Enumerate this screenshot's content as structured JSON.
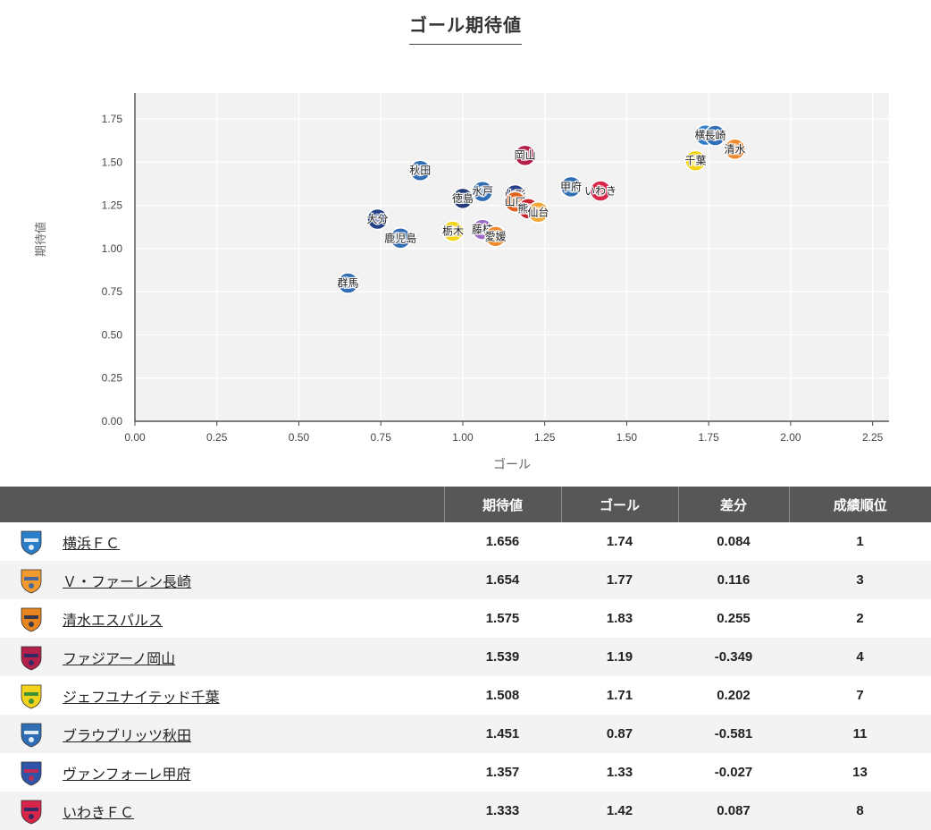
{
  "chart_data": {
    "type": "scatter",
    "title": "ゴール期待値",
    "xlabel": "ゴール",
    "ylabel": "期待値",
    "xlim": [
      0,
      2.3
    ],
    "ylim": [
      0,
      1.9
    ],
    "xticks": [
      "0.00",
      "0.25",
      "0.50",
      "0.75",
      "1.00",
      "1.25",
      "1.50",
      "1.75",
      "2.00",
      "2.25"
    ],
    "yticks": [
      "0.00",
      "0.25",
      "0.50",
      "0.75",
      "1.00",
      "1.25",
      "1.50",
      "1.75"
    ],
    "grid": true,
    "points": [
      {
        "label": "横浜",
        "x": 1.74,
        "y": 1.656,
        "color": "#2f7fc8"
      },
      {
        "label": "長崎",
        "x": 1.77,
        "y": 1.654,
        "color": "#2f6db5"
      },
      {
        "label": "清水",
        "x": 1.83,
        "y": 1.575,
        "color": "#f08a2e"
      },
      {
        "label": "岡山",
        "x": 1.19,
        "y": 1.539,
        "color": "#b3204a"
      },
      {
        "label": "千葉",
        "x": 1.71,
        "y": 1.508,
        "color": "#f4d51c"
      },
      {
        "label": "秋田",
        "x": 0.87,
        "y": 1.451,
        "color": "#2f6db5"
      },
      {
        "label": "甲府",
        "x": 1.33,
        "y": 1.357,
        "color": "#2f6db5"
      },
      {
        "label": "いわき",
        "x": 1.42,
        "y": 1.333,
        "color": "#d8254a"
      },
      {
        "label": "水戸",
        "x": 1.06,
        "y": 1.33,
        "color": "#2f6db5"
      },
      {
        "label": "徳島",
        "x": 1.0,
        "y": 1.29,
        "color": "#233a7a"
      },
      {
        "label": "山形",
        "x": 1.16,
        "y": 1.31,
        "color": "#273f88"
      },
      {
        "label": "山口",
        "x": 1.16,
        "y": 1.27,
        "color": "#e2611f"
      },
      {
        "label": "熊本",
        "x": 1.2,
        "y": 1.23,
        "color": "#c8202c"
      },
      {
        "label": "仙台",
        "x": 1.23,
        "y": 1.21,
        "color": "#f2a735"
      },
      {
        "label": "大分",
        "x": 0.74,
        "y": 1.17,
        "color": "#243f86"
      },
      {
        "label": "栃木",
        "x": 0.97,
        "y": 1.1,
        "color": "#f4d51c"
      },
      {
        "label": "藤枝",
        "x": 1.06,
        "y": 1.11,
        "color": "#9b6bc6"
      },
      {
        "label": "愛媛",
        "x": 1.1,
        "y": 1.07,
        "color": "#f08a2e"
      },
      {
        "label": "鹿児島",
        "x": 0.81,
        "y": 1.06,
        "color": "#2f6db5"
      },
      {
        "label": "群馬",
        "x": 0.65,
        "y": 0.8,
        "color": "#2f6db5"
      }
    ]
  },
  "table": {
    "headers": [
      "期待値",
      "ゴール",
      "差分",
      "成績順位"
    ],
    "rows": [
      {
        "name": "横浜ＦＣ",
        "xg": "1.656",
        "goals": "1.74",
        "diff": "0.084",
        "rank": "1",
        "crest_color": "#2a7dc7",
        "crest_accent": "#ffffff"
      },
      {
        "name": "Ｖ・ファーレン長崎",
        "xg": "1.654",
        "goals": "1.77",
        "diff": "0.116",
        "rank": "3",
        "crest_color": "#f29a2e",
        "crest_accent": "#2b5fae"
      },
      {
        "name": "清水エスパルス",
        "xg": "1.575",
        "goals": "1.83",
        "diff": "0.255",
        "rank": "2",
        "crest_color": "#e9851f",
        "crest_accent": "#1b2a55"
      },
      {
        "name": "ファジアーノ岡山",
        "xg": "1.539",
        "goals": "1.19",
        "diff": "-0.349",
        "rank": "4",
        "crest_color": "#b3204a",
        "crest_accent": "#1f2f6a"
      },
      {
        "name": "ジェフユナイテッド千葉",
        "xg": "1.508",
        "goals": "1.71",
        "diff": "0.202",
        "rank": "7",
        "crest_color": "#f2d21a",
        "crest_accent": "#1e8a3c"
      },
      {
        "name": "ブラウブリッツ秋田",
        "xg": "1.451",
        "goals": "0.87",
        "diff": "-0.581",
        "rank": "11",
        "crest_color": "#2f6db5",
        "crest_accent": "#ffffff"
      },
      {
        "name": "ヴァンフォーレ甲府",
        "xg": "1.357",
        "goals": "1.33",
        "diff": "-0.027",
        "rank": "13",
        "crest_color": "#2f55a8",
        "crest_accent": "#d8254a"
      },
      {
        "name": "いわきＦＣ",
        "xg": "1.333",
        "goals": "1.42",
        "diff": "0.087",
        "rank": "8",
        "crest_color": "#d8254a",
        "crest_accent": "#1a2a66"
      }
    ]
  }
}
